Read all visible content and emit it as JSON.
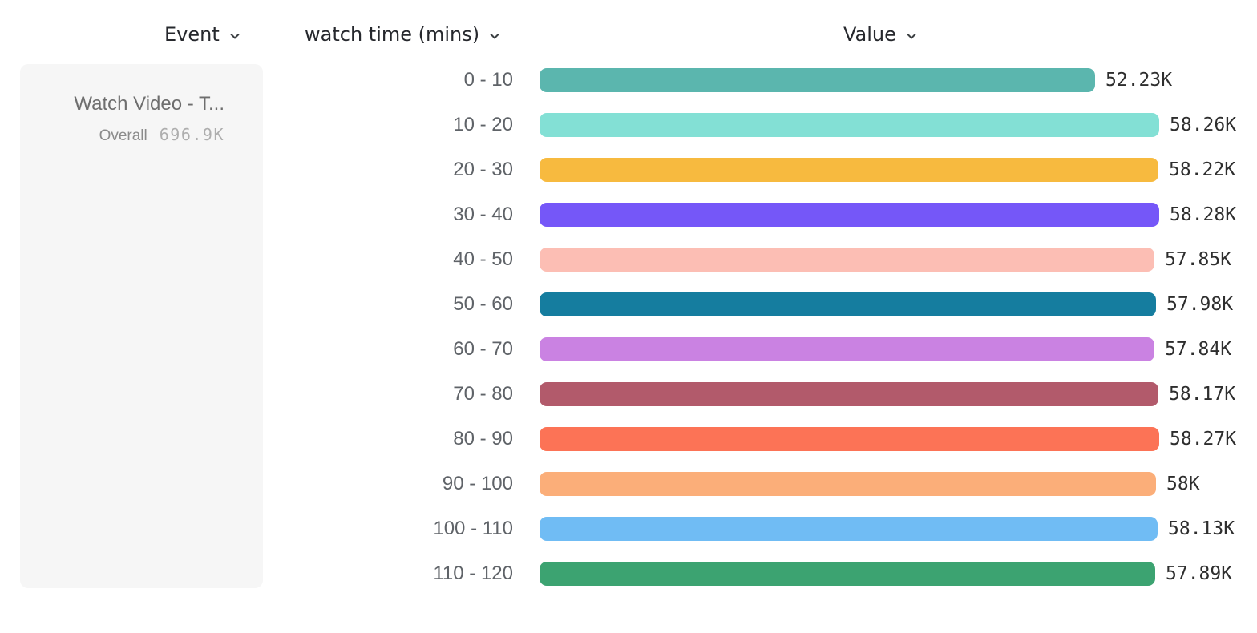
{
  "columns": {
    "event": {
      "label": "Event"
    },
    "breakdown": {
      "label": "watch time (mins)"
    },
    "value": {
      "label": "Value"
    }
  },
  "event_card": {
    "title": "Watch Video - T...",
    "overall_label": "Overall",
    "overall_value": "696.9K"
  },
  "icons": {
    "chevron_down": "chevron-down"
  },
  "chart_data": {
    "type": "bar",
    "orientation": "horizontal",
    "title": "",
    "category_header": "watch time (mins)",
    "value_header": "Value",
    "event_name": "Watch Video - T...",
    "overall_total": "696.9K",
    "categories": [
      "0 - 10",
      "10 - 20",
      "20 - 30",
      "30 - 40",
      "40 - 50",
      "50 - 60",
      "60 - 70",
      "70 - 80",
      "80 - 90",
      "90 - 100",
      "100 - 110",
      "110 - 120"
    ],
    "values": [
      52230,
      58260,
      58220,
      58280,
      57850,
      57980,
      57840,
      58170,
      58270,
      58000,
      58130,
      57890
    ],
    "value_labels": [
      "52.23K",
      "58.26K",
      "58.22K",
      "58.28K",
      "57.85K",
      "57.98K",
      "57.84K",
      "58.17K",
      "58.27K",
      "58K",
      "58.13K",
      "57.89K"
    ],
    "colors": [
      "#5BB6AE",
      "#83E0D5",
      "#F7BA3F",
      "#7557F8",
      "#FCBEB4",
      "#157D9F",
      "#CA82E2",
      "#B25A6B",
      "#FC7356",
      "#FBAE79",
      "#70BCF4",
      "#3CA371"
    ],
    "max_value": 58280,
    "axis_range": [
      0,
      58280
    ],
    "grid": false,
    "legend": false
  }
}
